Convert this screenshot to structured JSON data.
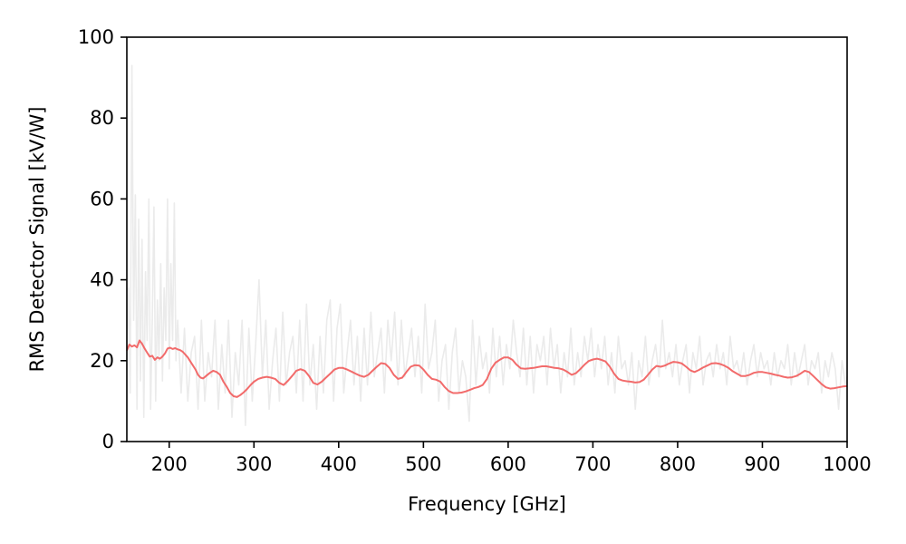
{
  "chart_data": {
    "type": "line",
    "xlabel": "Frequency [GHz]",
    "ylabel": "RMS Detector Signal [kV/W]",
    "xlim": [
      150,
      1000
    ],
    "ylim": [
      0,
      100
    ],
    "xticks": [
      200,
      300,
      400,
      500,
      600,
      700,
      800,
      900,
      1000
    ],
    "yticks": [
      0,
      20,
      40,
      60,
      80,
      100
    ],
    "grid": false,
    "legend": "none",
    "colors": {
      "raw": "#ebebeb",
      "smoothed": "#f26b6b",
      "axes": "#000000"
    },
    "series": [
      {
        "role": "raw",
        "x": [
          150,
          152,
          154,
          156,
          158,
          160,
          162,
          164,
          166,
          168,
          170,
          172,
          174,
          176,
          178,
          180,
          182,
          184,
          186,
          188,
          190,
          192,
          194,
          196,
          198,
          200,
          202,
          204,
          206,
          208,
          210,
          214,
          218,
          222,
          226,
          230,
          234,
          238,
          242,
          246,
          250,
          254,
          258,
          262,
          266,
          270,
          274,
          278,
          282,
          286,
          290,
          294,
          298,
          302,
          306,
          310,
          314,
          318,
          322,
          326,
          330,
          334,
          338,
          342,
          346,
          350,
          354,
          358,
          362,
          366,
          370,
          374,
          378,
          382,
          386,
          390,
          394,
          398,
          402,
          406,
          410,
          414,
          418,
          422,
          426,
          430,
          434,
          438,
          442,
          446,
          450,
          454,
          458,
          462,
          466,
          470,
          474,
          478,
          482,
          486,
          490,
          494,
          498,
          502,
          506,
          510,
          514,
          518,
          522,
          526,
          530,
          534,
          538,
          542,
          546,
          550,
          554,
          558,
          562,
          566,
          570,
          574,
          578,
          582,
          586,
          590,
          594,
          598,
          602,
          606,
          610,
          614,
          618,
          622,
          626,
          630,
          634,
          638,
          642,
          646,
          650,
          654,
          658,
          662,
          666,
          670,
          674,
          678,
          682,
          686,
          690,
          694,
          698,
          702,
          706,
          710,
          714,
          718,
          722,
          726,
          730,
          734,
          738,
          742,
          746,
          750,
          754,
          758,
          762,
          766,
          770,
          774,
          778,
          782,
          786,
          790,
          794,
          798,
          802,
          806,
          810,
          814,
          818,
          822,
          826,
          830,
          834,
          838,
          842,
          846,
          850,
          854,
          858,
          862,
          866,
          870,
          874,
          878,
          882,
          886,
          890,
          894,
          898,
          902,
          906,
          910,
          914,
          918,
          922,
          926,
          930,
          934,
          938,
          942,
          946,
          950,
          954,
          958,
          962,
          966,
          970,
          974,
          978,
          982,
          986,
          990,
          994,
          998,
          1000
        ],
        "y": [
          20,
          38,
          12,
          93,
          30,
          61,
          8,
          55,
          15,
          50,
          6,
          42,
          25,
          60,
          8,
          30,
          58,
          10,
          35,
          20,
          44,
          15,
          38,
          25,
          60,
          18,
          44,
          25,
          59,
          20,
          30,
          12,
          28,
          10,
          22,
          26,
          8,
          30,
          10,
          22,
          16,
          30,
          8,
          24,
          12,
          30,
          6,
          22,
          14,
          30,
          4,
          28,
          10,
          24,
          40,
          16,
          30,
          8,
          20,
          28,
          10,
          32,
          14,
          22,
          26,
          12,
          30,
          10,
          34,
          14,
          24,
          8,
          26,
          12,
          30,
          35,
          10,
          28,
          34,
          12,
          22,
          30,
          14,
          26,
          10,
          28,
          14,
          32,
          16,
          22,
          28,
          12,
          30,
          20,
          32,
          14,
          30,
          16,
          22,
          28,
          16,
          26,
          12,
          34,
          18,
          22,
          30,
          10,
          20,
          24,
          8,
          22,
          28,
          12,
          20,
          16,
          5,
          30,
          14,
          26,
          18,
          22,
          12,
          28,
          16,
          26,
          14,
          24,
          18,
          30,
          22,
          16,
          28,
          14,
          26,
          12,
          24,
          20,
          26,
          14,
          28,
          18,
          24,
          12,
          22,
          16,
          28,
          14,
          22,
          16,
          26,
          20,
          28,
          16,
          24,
          18,
          26,
          14,
          22,
          12,
          26,
          18,
          20,
          14,
          22,
          8,
          20,
          16,
          26,
          14,
          20,
          24,
          16,
          30,
          18,
          22,
          16,
          24,
          14,
          20,
          24,
          12,
          22,
          18,
          26,
          14,
          20,
          22,
          16,
          24,
          18,
          22,
          14,
          26,
          18,
          20,
          16,
          22,
          14,
          20,
          24,
          16,
          22,
          18,
          20,
          14,
          22,
          16,
          20,
          18,
          24,
          14,
          22,
          16,
          20,
          24,
          14,
          20,
          18,
          22,
          12,
          20,
          16,
          22,
          18,
          8,
          20,
          14,
          16
        ]
      },
      {
        "role": "smoothed",
        "x": [
          150,
          153,
          156,
          159,
          162,
          165,
          168,
          171,
          174,
          177,
          180,
          183,
          186,
          189,
          192,
          195,
          198,
          201,
          204,
          207,
          210,
          213,
          216,
          219,
          222,
          225,
          228,
          231,
          234,
          237,
          240,
          244,
          248,
          252,
          256,
          260,
          264,
          268,
          272,
          276,
          280,
          284,
          288,
          292,
          296,
          300,
          305,
          310,
          315,
          320,
          325,
          330,
          335,
          340,
          345,
          350,
          355,
          360,
          365,
          370,
          375,
          380,
          385,
          390,
          395,
          400,
          405,
          410,
          415,
          420,
          425,
          430,
          435,
          440,
          445,
          450,
          455,
          460,
          465,
          470,
          475,
          480,
          485,
          490,
          495,
          500,
          505,
          510,
          515,
          520,
          525,
          530,
          535,
          540,
          545,
          550,
          555,
          560,
          565,
          570,
          575,
          580,
          585,
          590,
          595,
          600,
          605,
          610,
          615,
          620,
          625,
          630,
          635,
          640,
          645,
          650,
          655,
          660,
          665,
          670,
          675,
          680,
          685,
          690,
          695,
          700,
          705,
          710,
          715,
          720,
          725,
          730,
          735,
          740,
          745,
          750,
          755,
          760,
          765,
          770,
          775,
          780,
          785,
          790,
          795,
          800,
          805,
          810,
          815,
          820,
          825,
          830,
          835,
          840,
          845,
          850,
          855,
          860,
          865,
          870,
          875,
          880,
          885,
          890,
          895,
          900,
          905,
          910,
          915,
          920,
          925,
          930,
          935,
          940,
          945,
          950,
          955,
          960,
          965,
          970,
          975,
          980,
          985,
          990,
          995,
          1000
        ],
        "y": [
          22.5,
          24,
          23.5,
          23.8,
          23.3,
          25,
          24.2,
          23,
          22,
          21,
          21.2,
          20.2,
          20.8,
          20.5,
          21,
          21.8,
          23,
          23.2,
          22.9,
          23.1,
          22.8,
          22.6,
          22.2,
          21.5,
          20.8,
          19.8,
          18.8,
          17.8,
          16.5,
          15.8,
          15.6,
          16.3,
          17,
          17.5,
          17.2,
          16.5,
          14.8,
          13.5,
          12,
          11.2,
          11,
          11.5,
          12.2,
          13,
          14,
          14.8,
          15.5,
          15.8,
          16,
          15.8,
          15.5,
          14.5,
          14,
          15,
          16.2,
          17.5,
          17.9,
          17.5,
          16.2,
          14.5,
          14.1,
          14.8,
          15.8,
          16.8,
          17.8,
          18.2,
          18.2,
          17.8,
          17.3,
          16.8,
          16.3,
          16,
          16.5,
          17.5,
          18.5,
          19.4,
          19.2,
          18.2,
          16.5,
          15.5,
          15.8,
          17.2,
          18.5,
          18.9,
          18.8,
          17.8,
          16.5,
          15.5,
          15.3,
          14.8,
          13.5,
          12.5,
          12,
          12,
          12.1,
          12.4,
          12.8,
          13.2,
          13.5,
          14,
          15.5,
          18,
          19.5,
          20.2,
          20.8,
          20.8,
          20.2,
          19,
          18.1,
          18,
          18.1,
          18.2,
          18.4,
          18.6,
          18.6,
          18.4,
          18.2,
          18.1,
          17.8,
          17.2,
          16.5,
          16.9,
          17.9,
          19,
          19.9,
          20.3,
          20.5,
          20.2,
          19.8,
          18.5,
          16.8,
          15.5,
          15.1,
          14.9,
          14.8,
          14.6,
          14.7,
          15.3,
          16.5,
          17.8,
          18.7,
          18.5,
          18.8,
          19.3,
          19.7,
          19.6,
          19.3,
          18.5,
          17.6,
          17.2,
          17.7,
          18.3,
          18.8,
          19.3,
          19.4,
          19.2,
          18.8,
          18.2,
          17.4,
          16.8,
          16.2,
          16.2,
          16.5,
          17,
          17.2,
          17.2,
          17,
          16.8,
          16.5,
          16.3,
          16,
          15.8,
          15.9,
          16.2,
          16.8,
          17.5,
          17.2,
          16.2,
          15.2,
          14.2,
          13.4,
          13.1,
          13.2,
          13.4,
          13.6,
          13.7
        ]
      }
    ]
  }
}
